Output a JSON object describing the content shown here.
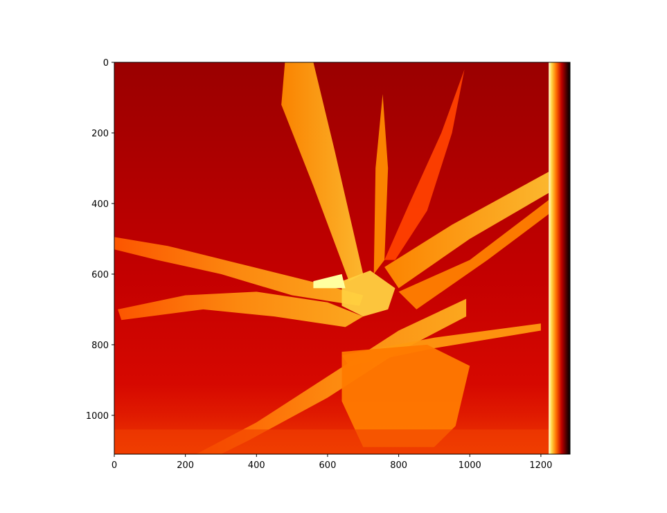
{
  "chart_data": {
    "type": "heatmap",
    "description_free": true,
    "title": "",
    "xlabel": "",
    "ylabel": "",
    "colormap": "hot",
    "xlim": [
      0,
      1282
    ],
    "ylim": [
      1110,
      0
    ],
    "x_ticks": [
      0,
      200,
      400,
      600,
      800,
      1000,
      1200
    ],
    "y_ticks": [
      0,
      200,
      400,
      600,
      800,
      1000
    ],
    "x_tick_labels": [
      "0",
      "200",
      "400",
      "600",
      "800",
      "1000",
      "1200"
    ],
    "y_tick_labels": [
      "0",
      "200",
      "400",
      "600",
      "800",
      "1000"
    ],
    "grid": false,
    "colors": {
      "dark_red": "#8f0000",
      "red": "#c80000",
      "bright_red": "#e01000",
      "orange": "#ff6a00",
      "light_orange": "#ff9a10",
      "yellow": "#ffd040",
      "pale_yellow": "#ffffa0",
      "black": "#000000"
    }
  }
}
